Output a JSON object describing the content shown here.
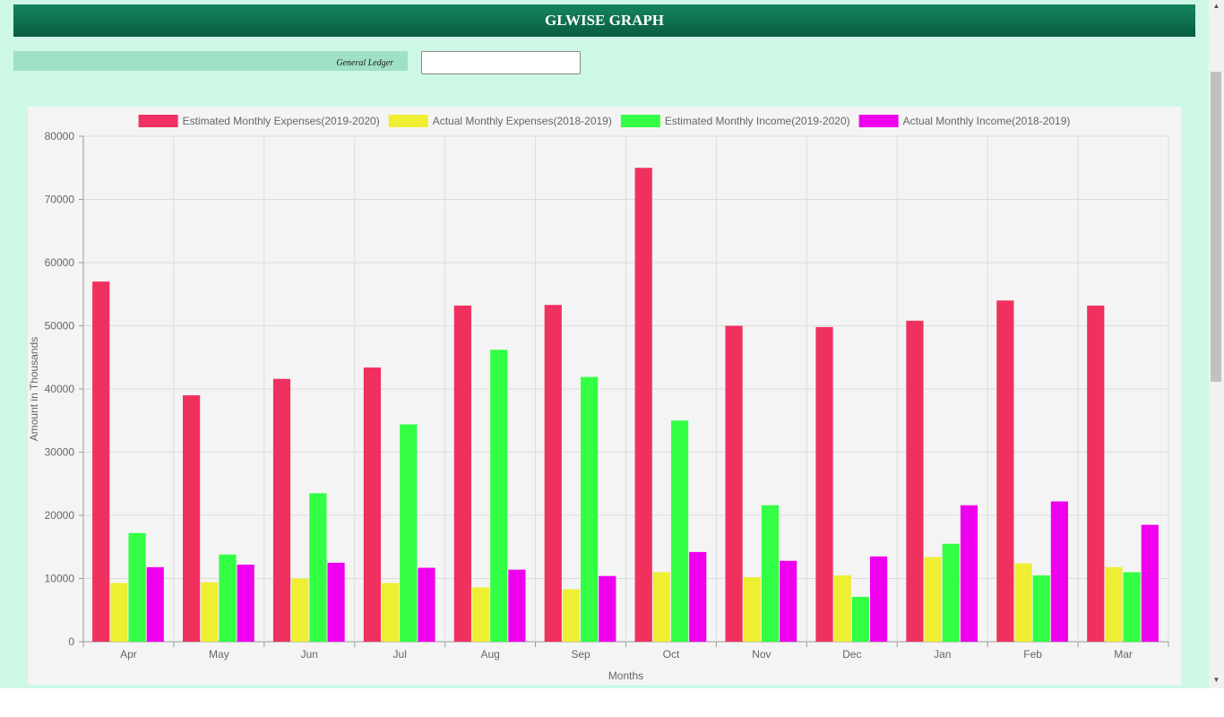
{
  "header": {
    "title": "GLWISE GRAPH"
  },
  "filter": {
    "label": "General Ledger",
    "input_value": ""
  },
  "chart_data": {
    "type": "bar",
    "categories": [
      "Apr",
      "May",
      "Jun",
      "Jul",
      "Aug",
      "Sep",
      "Oct",
      "Nov",
      "Dec",
      "Jan",
      "Feb",
      "Mar"
    ],
    "series": [
      {
        "name": "Estimated Monthly Expenses(2019-2020)",
        "color": "#f0305f",
        "values": [
          57000,
          39000,
          41600,
          43400,
          53200,
          53300,
          75000,
          50000,
          49800,
          50800,
          54000,
          53200
        ]
      },
      {
        "name": "Actual Monthly Expenses(2018-2019)",
        "color": "#eeee33",
        "values": [
          9300,
          9400,
          10000,
          9300,
          8600,
          8300,
          11000,
          10200,
          10500,
          13400,
          12400,
          11800
        ]
      },
      {
        "name": "Estimated Monthly Income(2019-2020)",
        "color": "#33ff44",
        "values": [
          17200,
          13800,
          23500,
          34400,
          46200,
          41900,
          35000,
          21600,
          7100,
          15500,
          10500,
          11000
        ]
      },
      {
        "name": "Actual Monthly Income(2018-2019)",
        "color": "#ee00ee",
        "values": [
          11800,
          12200,
          12500,
          11700,
          11400,
          10400,
          14200,
          12800,
          13500,
          21600,
          22200,
          18500
        ]
      }
    ],
    "xlabel": "Months",
    "ylabel": "Amount in Thousands",
    "ylim": [
      0,
      80000
    ],
    "yticks": [
      0,
      10000,
      20000,
      30000,
      40000,
      50000,
      60000,
      70000,
      80000
    ],
    "grid": true,
    "legend": "top"
  }
}
